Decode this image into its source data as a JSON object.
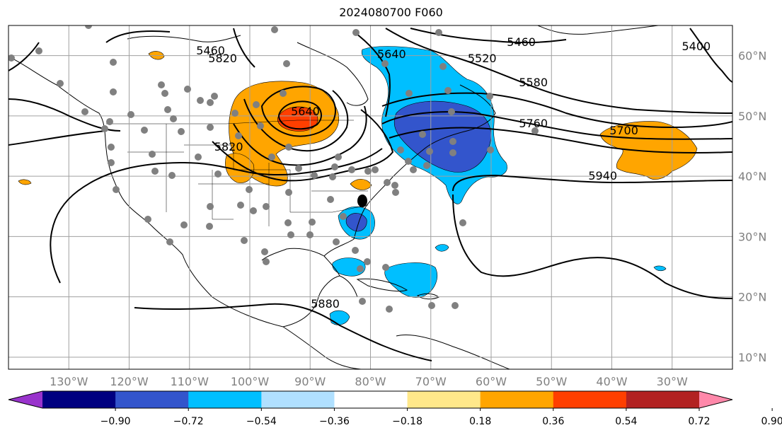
{
  "title": "2024080700 F060",
  "map": {
    "lon_range": [
      -140,
      -20
    ],
    "lat_range": [
      8,
      65
    ],
    "grid": true,
    "lon_ticks": [
      {
        "value": -130,
        "label": "130°W"
      },
      {
        "value": -120,
        "label": "120°W"
      },
      {
        "value": -110,
        "label": "110°W"
      },
      {
        "value": -100,
        "label": "100°W"
      },
      {
        "value": -90,
        "label": "90°W"
      },
      {
        "value": -80,
        "label": "80°W"
      },
      {
        "value": -70,
        "label": "70°W"
      },
      {
        "value": -60,
        "label": "60°W"
      },
      {
        "value": -50,
        "label": "50°W"
      },
      {
        "value": -40,
        "label": "40°W"
      },
      {
        "value": -30,
        "label": "30°W"
      }
    ],
    "lat_ticks": [
      {
        "value": 10,
        "label": "10°N"
      },
      {
        "value": 20,
        "label": "20°N"
      },
      {
        "value": 30,
        "label": "30°N"
      },
      {
        "value": 40,
        "label": "40°N"
      },
      {
        "value": 50,
        "label": "50°N"
      },
      {
        "value": 60,
        "label": "60°N"
      }
    ],
    "contour_labels": [
      {
        "text": "5460",
        "lon": -106.5,
        "lat": 60.8
      },
      {
        "text": "5820",
        "lon": -104.5,
        "lat": 59.5
      },
      {
        "text": "5640",
        "lon": -90.8,
        "lat": 50.7
      },
      {
        "text": "5820",
        "lon": -103.5,
        "lat": 44.8
      },
      {
        "text": "5640",
        "lon": -76.5,
        "lat": 60.2
      },
      {
        "text": "5460",
        "lon": -55.0,
        "lat": 62.2
      },
      {
        "text": "5520",
        "lon": -61.5,
        "lat": 59.5
      },
      {
        "text": "5580",
        "lon": -53.0,
        "lat": 55.5
      },
      {
        "text": "5760",
        "lon": -53.0,
        "lat": 48.7
      },
      {
        "text": "5700",
        "lon": -38.0,
        "lat": 47.5
      },
      {
        "text": "5940",
        "lon": -41.5,
        "lat": 40.0
      },
      {
        "text": "5400",
        "lon": -26.0,
        "lat": 61.5
      },
      {
        "text": "5880",
        "lon": -87.5,
        "lat": 18.8
      }
    ]
  },
  "colorbar": {
    "colors": [
      "#9933cc",
      "#000080",
      "#3355cc",
      "#00bfff",
      "#b0e0ff",
      "#ffffff",
      "#ffe88a",
      "#ffa500",
      "#ff3f00",
      "#b22222",
      "#ff88aa"
    ],
    "labels": [
      "−0.90",
      "−0.72",
      "−0.54",
      "−0.36",
      "−0.18",
      "0.18",
      "0.36",
      "0.54",
      "0.72",
      "0.90"
    ]
  }
}
